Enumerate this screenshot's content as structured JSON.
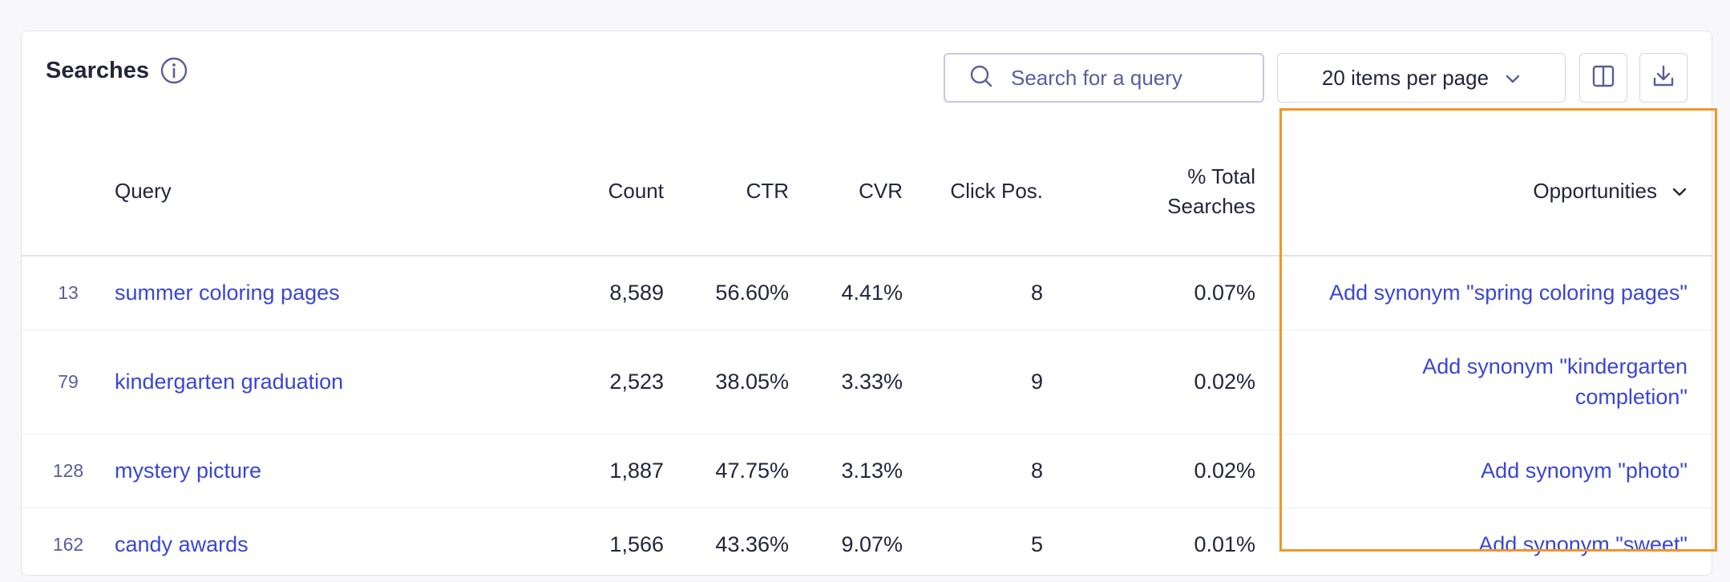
{
  "header": {
    "title": "Searches",
    "search_placeholder": "Search for a query",
    "per_page_label": "20 items per page"
  },
  "table": {
    "columns": {
      "query": "Query",
      "count": "Count",
      "ctr": "CTR",
      "cvr": "CVR",
      "click_pos": "Click Pos.",
      "total_searches": "% Total Searches",
      "opportunities": "Opportunities"
    },
    "rows": [
      {
        "rank": "13",
        "query": "summer coloring pages",
        "count": "8,589",
        "ctr": "56.60%",
        "cvr": "4.41%",
        "click_pos": "8",
        "total": "0.07%",
        "opportunity": "Add synonym \"spring coloring pages\""
      },
      {
        "rank": "79",
        "query": "kindergarten graduation",
        "count": "2,523",
        "ctr": "38.05%",
        "cvr": "3.33%",
        "click_pos": "9",
        "total": "0.02%",
        "opportunity": "Add synonym \"kindergarten completion\""
      },
      {
        "rank": "128",
        "query": "mystery picture",
        "count": "1,887",
        "ctr": "47.75%",
        "cvr": "3.13%",
        "click_pos": "8",
        "total": "0.02%",
        "opportunity": "Add synonym \"photo\""
      },
      {
        "rank": "162",
        "query": "candy awards",
        "count": "1,566",
        "ctr": "43.36%",
        "cvr": "9.07%",
        "click_pos": "5",
        "total": "0.01%",
        "opportunity": "Add synonym \"sweet\""
      }
    ]
  },
  "icons": {
    "info": "info-icon",
    "search": "search-icon",
    "chevron": "chevron-down-icon",
    "columns": "columns-icon",
    "download": "download-icon"
  },
  "colors": {
    "link": "#3a46d4",
    "highlight": "#f0962a",
    "rank": "#5a5e9a"
  }
}
